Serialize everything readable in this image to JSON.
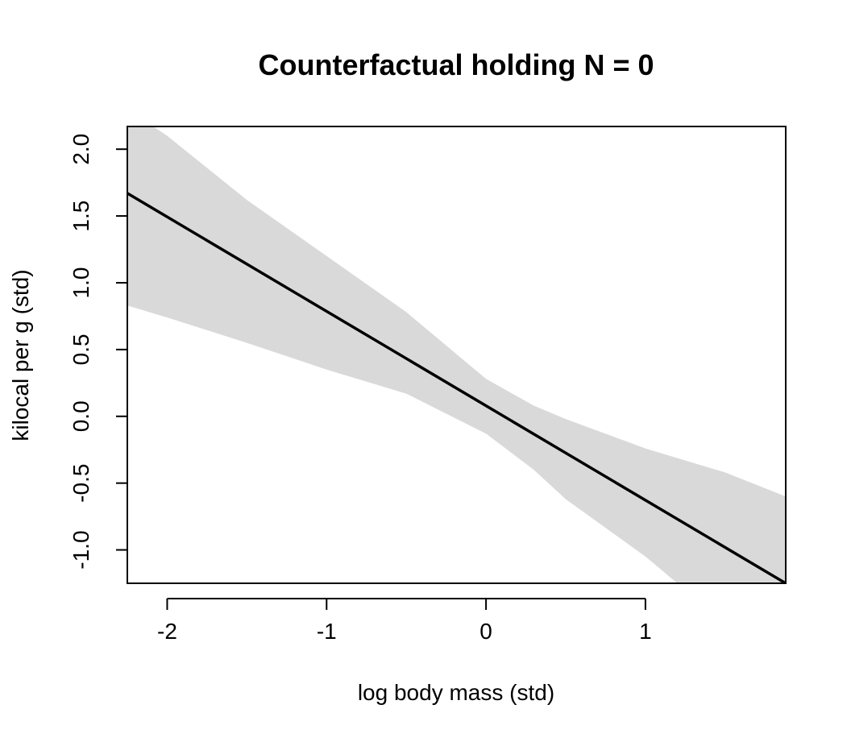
{
  "chart_data": {
    "type": "line",
    "title": "Counterfactual holding N = 0",
    "xlabel": "log body mass (std)",
    "ylabel": "kilocal per g (std)",
    "xlim": [
      -2.25,
      1.88
    ],
    "ylim": [
      -1.25,
      2.17
    ],
    "x_ticks": [
      -2,
      -1,
      0,
      1
    ],
    "x_tick_labels": [
      "-2",
      "-1",
      "0",
      "1"
    ],
    "y_ticks": [
      -1.0,
      -0.5,
      0.0,
      0.5,
      1.0,
      1.5,
      2.0
    ],
    "y_tick_labels": [
      "-1.0",
      "-0.5",
      "0.0",
      "0.5",
      "1.0",
      "1.5",
      "2.0"
    ],
    "grid": false,
    "colors": {
      "line": "#000000",
      "interval": "#d9d9d9",
      "frame": "#000000"
    },
    "series": [
      {
        "kind": "mean_line",
        "x": [
          -2.25,
          1.88
        ],
        "y": [
          1.67,
          -1.25
        ]
      },
      {
        "kind": "interval_band",
        "x": [
          -2.25,
          -2.0,
          -1.5,
          -1.0,
          -0.5,
          0.0,
          0.3,
          0.5,
          1.0,
          1.5,
          1.88
        ],
        "upper": [
          2.3,
          2.1,
          1.62,
          1.2,
          0.78,
          0.28,
          0.08,
          -0.02,
          -0.24,
          -0.42,
          -0.6
        ],
        "lower": [
          0.83,
          0.74,
          0.55,
          0.35,
          0.17,
          -0.13,
          -0.4,
          -0.62,
          -1.05,
          -1.55,
          -1.9
        ]
      }
    ]
  }
}
